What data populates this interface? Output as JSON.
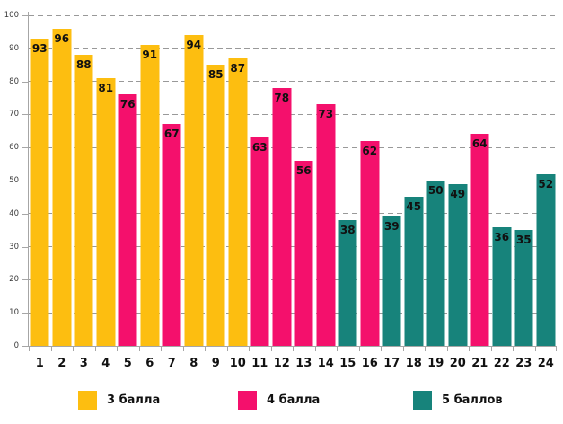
{
  "chart_data": {
    "type": "bar",
    "title": "",
    "xlabel": "",
    "ylabel": "",
    "categories": [
      "1",
      "2",
      "3",
      "4",
      "5",
      "6",
      "7",
      "8",
      "9",
      "10",
      "11",
      "12",
      "13",
      "14",
      "15",
      "16",
      "17",
      "18",
      "19",
      "20",
      "21",
      "22",
      "23",
      "24"
    ],
    "values": [
      93,
      96,
      88,
      81,
      76,
      91,
      67,
      94,
      85,
      87,
      63,
      78,
      56,
      73,
      38,
      62,
      39,
      45,
      50,
      49,
      64,
      36,
      35,
      52
    ],
    "point_groups": [
      0,
      0,
      0,
      0,
      1,
      0,
      1,
      0,
      0,
      0,
      1,
      1,
      1,
      1,
      2,
      1,
      2,
      2,
      2,
      2,
      1,
      2,
      2,
      2
    ],
    "legend": [
      {
        "label": "3 балла",
        "color": "#FDBE10"
      },
      {
        "label": "4 балла",
        "color": "#F4106C"
      },
      {
        "label": "5 баллов",
        "color": "#17837B"
      }
    ],
    "ylim": [
      0,
      100
    ],
    "yticks": [
      0,
      10,
      20,
      30,
      40,
      50,
      60,
      70,
      80,
      90,
      100
    ],
    "grid": "horizontal-dashed",
    "legend_position": "bottom",
    "value_labels": "inside-top"
  },
  "styles": {
    "background": "#FFFFFF",
    "grid_color": "#999999",
    "axis_color": "#A6A6A6",
    "value_label_color": "#111111",
    "tick_label_color": "#3A3A3A"
  }
}
